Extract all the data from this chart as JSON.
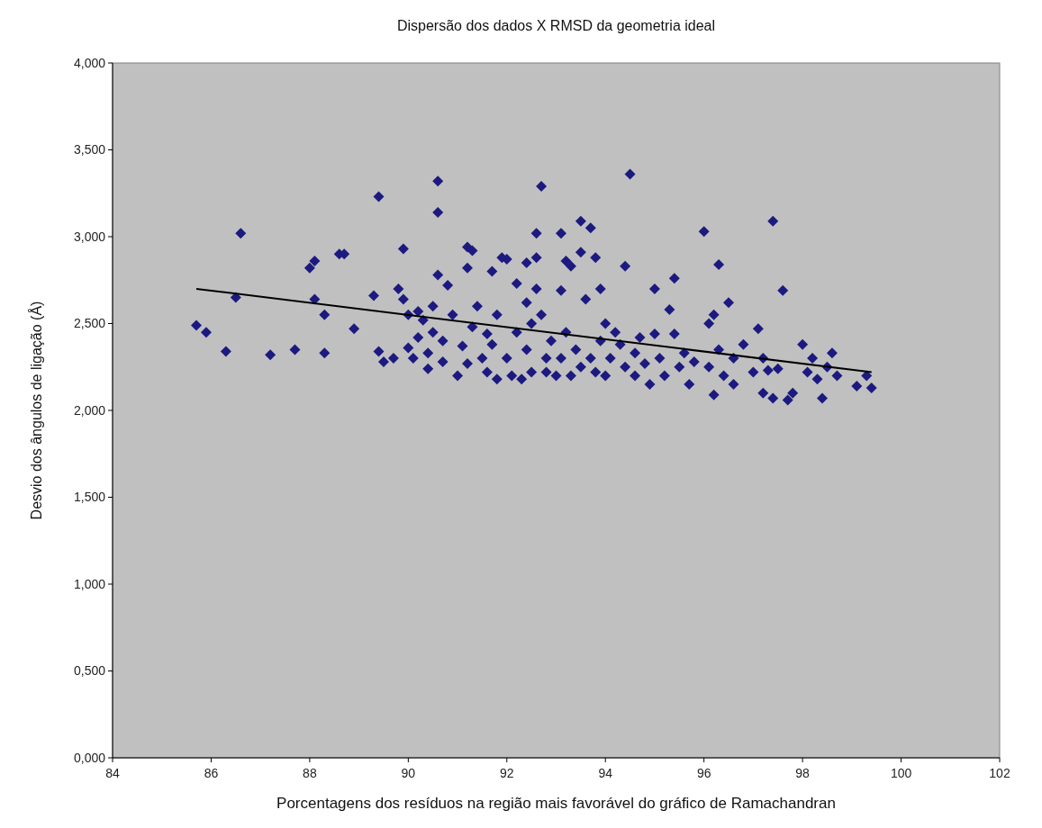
{
  "chart_data": {
    "type": "scatter",
    "title": "Dispersão dos dados X RMSD da geometria ideal",
    "xlabel": "Porcentagens dos resíduos na região mais favorável do gráfico de Ramachandran",
    "ylabel": "Desvio dos ângulos de ligação (Å)",
    "xlim": [
      84,
      102
    ],
    "xticks": [
      84,
      86,
      88,
      90,
      92,
      94,
      96,
      98,
      100,
      102
    ],
    "ylim": [
      0,
      4
    ],
    "yticks": [
      {
        "value": 0,
        "label": "0,000"
      },
      {
        "value": 0.5,
        "label": "0,500"
      },
      {
        "value": 1,
        "label": "1,000"
      },
      {
        "value": 1.5,
        "label": "1,500"
      },
      {
        "value": 2,
        "label": "2,000"
      },
      {
        "value": 2.5,
        "label": "2,500"
      },
      {
        "value": 3,
        "label": "3,000"
      },
      {
        "value": 3.5,
        "label": "3,500"
      },
      {
        "value": 4,
        "label": "4,000"
      }
    ],
    "grid": false,
    "marker": "diamond",
    "series": [
      {
        "color": "#1c1a80",
        "x": [
          85.7,
          85.9,
          86.3,
          86.5,
          86.6,
          87.2,
          87.7,
          88.0,
          88.1,
          88.1,
          88.3,
          88.3,
          88.6,
          88.7,
          88.9,
          89.3,
          89.4,
          89.4,
          89.5,
          89.7,
          89.9,
          89.8,
          89.9,
          90.0,
          90.0,
          90.1,
          90.2,
          90.2,
          90.3,
          90.4,
          90.4,
          90.5,
          90.5,
          90.6,
          90.6,
          90.6,
          90.7,
          90.7,
          90.8,
          90.9,
          91.0,
          91.1,
          91.2,
          91.2,
          91.3,
          91.2,
          91.3,
          91.4,
          91.5,
          91.6,
          91.6,
          91.7,
          91.7,
          91.8,
          91.8,
          91.9,
          92.0,
          92.0,
          92.1,
          92.2,
          92.2,
          92.3,
          92.4,
          92.4,
          92.4,
          92.5,
          92.5,
          92.6,
          92.6,
          92.6,
          92.7,
          92.7,
          92.8,
          92.8,
          92.9,
          93.0,
          93.1,
          93.1,
          93.1,
          93.2,
          93.2,
          93.3,
          93.3,
          93.4,
          93.5,
          93.5,
          93.5,
          93.6,
          93.7,
          93.7,
          93.8,
          93.8,
          93.9,
          93.9,
          94.0,
          94.0,
          94.1,
          94.2,
          94.3,
          94.4,
          94.4,
          94.5,
          94.6,
          94.6,
          94.7,
          94.8,
          94.9,
          95.0,
          95.0,
          95.1,
          95.2,
          95.3,
          95.4,
          95.4,
          95.5,
          95.6,
          95.7,
          95.8,
          96.0,
          96.1,
          96.1,
          96.2,
          96.2,
          96.3,
          96.3,
          96.4,
          96.5,
          96.6,
          96.6,
          96.8,
          97.0,
          97.1,
          97.2,
          97.2,
          97.3,
          97.4,
          97.4,
          97.5,
          97.6,
          97.7,
          97.8,
          98.0,
          98.1,
          98.2,
          98.3,
          98.4,
          98.5,
          98.6,
          98.7,
          99.1,
          99.3,
          99.4
        ],
        "values": [
          2.49,
          2.45,
          2.34,
          2.65,
          3.02,
          2.32,
          2.35,
          2.82,
          2.86,
          2.64,
          2.55,
          2.33,
          2.9,
          2.9,
          2.47,
          2.66,
          2.34,
          3.23,
          2.28,
          2.3,
          2.93,
          2.7,
          2.64,
          2.36,
          2.55,
          2.3,
          2.42,
          2.57,
          2.52,
          2.24,
          2.33,
          2.45,
          2.6,
          3.32,
          3.14,
          2.78,
          2.28,
          2.4,
          2.72,
          2.55,
          2.2,
          2.37,
          2.94,
          2.82,
          2.92,
          2.27,
          2.48,
          2.6,
          2.3,
          2.22,
          2.44,
          2.8,
          2.38,
          2.18,
          2.55,
          2.88,
          2.87,
          2.3,
          2.2,
          2.45,
          2.73,
          2.18,
          2.85,
          2.62,
          2.35,
          2.22,
          2.5,
          3.02,
          2.88,
          2.7,
          3.29,
          2.55,
          2.3,
          2.22,
          2.4,
          2.2,
          2.69,
          3.02,
          2.3,
          2.86,
          2.45,
          2.83,
          2.2,
          2.35,
          3.09,
          2.25,
          2.91,
          2.64,
          3.05,
          2.3,
          2.88,
          2.22,
          2.7,
          2.4,
          2.5,
          2.2,
          2.3,
          2.45,
          2.38,
          2.83,
          2.25,
          3.36,
          2.33,
          2.2,
          2.42,
          2.27,
          2.15,
          2.7,
          2.44,
          2.3,
          2.2,
          2.58,
          2.44,
          2.76,
          2.25,
          2.33,
          2.15,
          2.28,
          3.03,
          2.25,
          2.5,
          2.55,
          2.09,
          2.35,
          2.84,
          2.2,
          2.62,
          2.3,
          2.15,
          2.38,
          2.22,
          2.47,
          2.1,
          2.3,
          2.23,
          3.09,
          2.07,
          2.24,
          2.69,
          2.06,
          2.1,
          2.38,
          2.22,
          2.3,
          2.18,
          2.07,
          2.25,
          2.33,
          2.2,
          2.14,
          2.2,
          2.13
        ]
      },
      {
        "type": "line",
        "marker": "none",
        "color": "#000000",
        "x": [
          85.7,
          99.4
        ],
        "values": [
          2.7,
          2.22
        ]
      }
    ]
  }
}
